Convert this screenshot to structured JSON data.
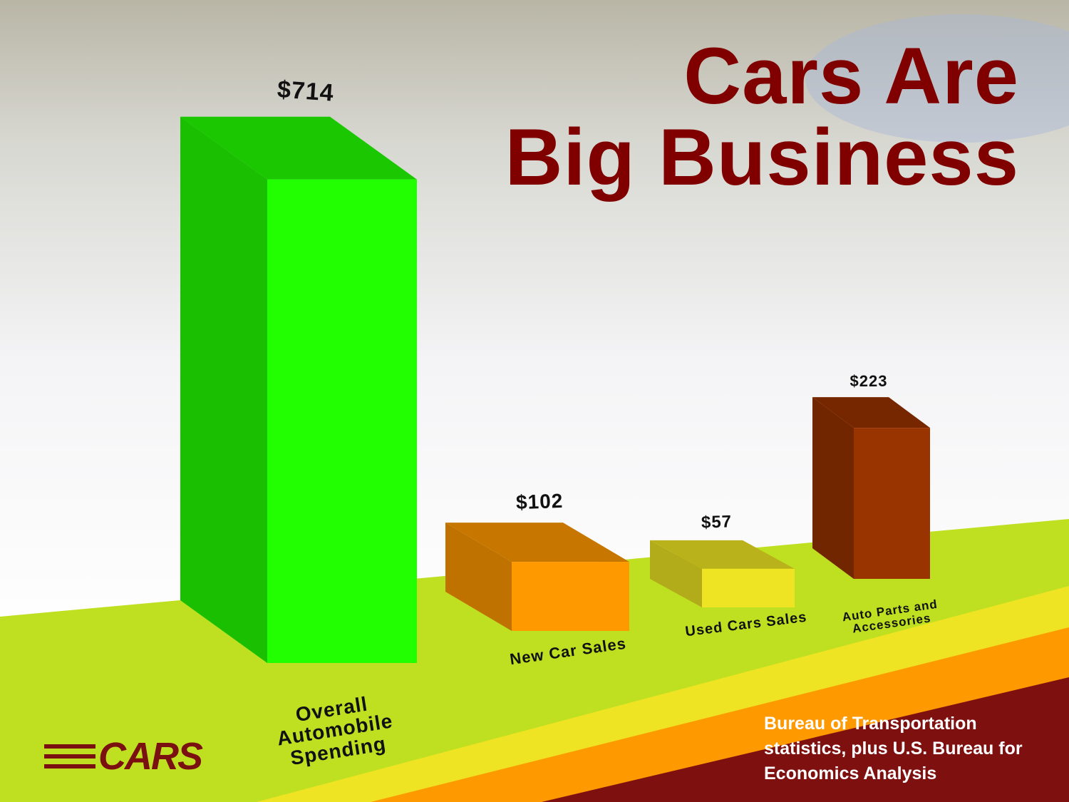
{
  "chart_data": {
    "type": "bar3d",
    "title": "Cars Are\nBig Business",
    "categories": [
      "Overall Automobile Spending",
      "New Car Sales",
      "Used Cars Sales",
      "Auto Parts and Accessories"
    ],
    "values": [
      714,
      102,
      57,
      223
    ],
    "value_labels": [
      "$714",
      "$102",
      "$57",
      "$223"
    ],
    "colors": [
      "#22ff00",
      "#ff9900",
      "#eee423",
      "#993300"
    ],
    "source": "Bureau of Transportation statistics, plus U.S. Bureau for Economics Analysis"
  },
  "logo": "CARS"
}
